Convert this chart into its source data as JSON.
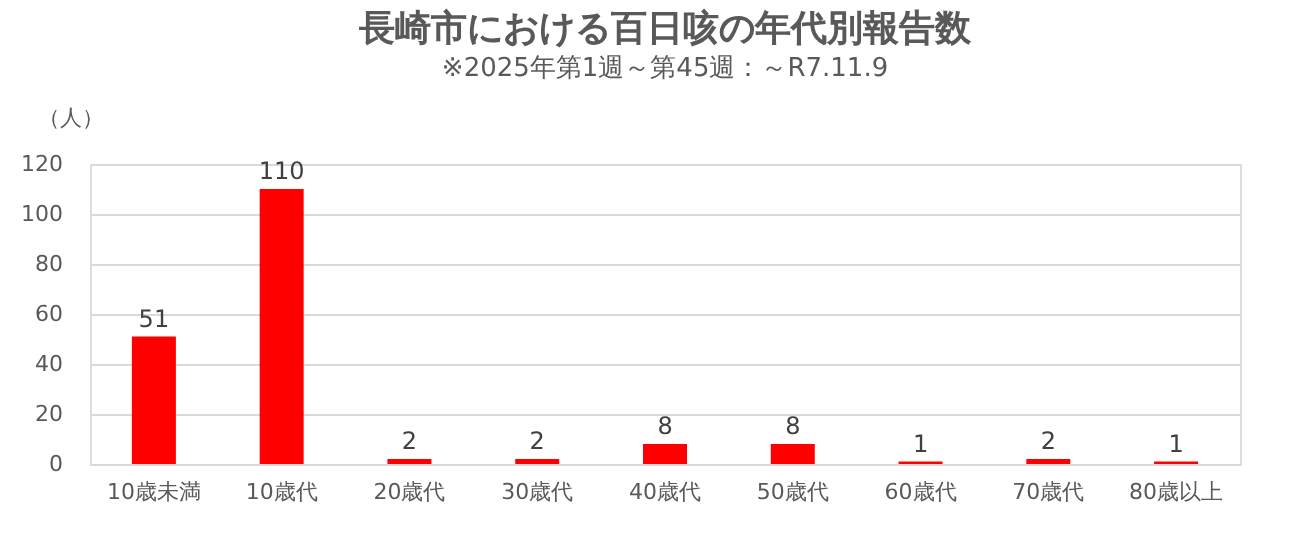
{
  "chart_data": {
    "type": "bar",
    "title": "長崎市における百日咳の年代別報告数",
    "subtitle": "※2025年第1週～第45週：～R7.11.9",
    "ylabel": "（人）",
    "categories": [
      "10歳未満",
      "10歳代",
      "20歳代",
      "30歳代",
      "40歳代",
      "50歳代",
      "60歳代",
      "70歳代",
      "80歳以上"
    ],
    "values": [
      51,
      110,
      2,
      2,
      8,
      8,
      1,
      2,
      1
    ],
    "color": "#ff0000",
    "ylim": [
      0,
      120
    ],
    "yticks": [
      0,
      20,
      40,
      60,
      80,
      100,
      120
    ],
    "grid": "y",
    "data_labels": true
  }
}
